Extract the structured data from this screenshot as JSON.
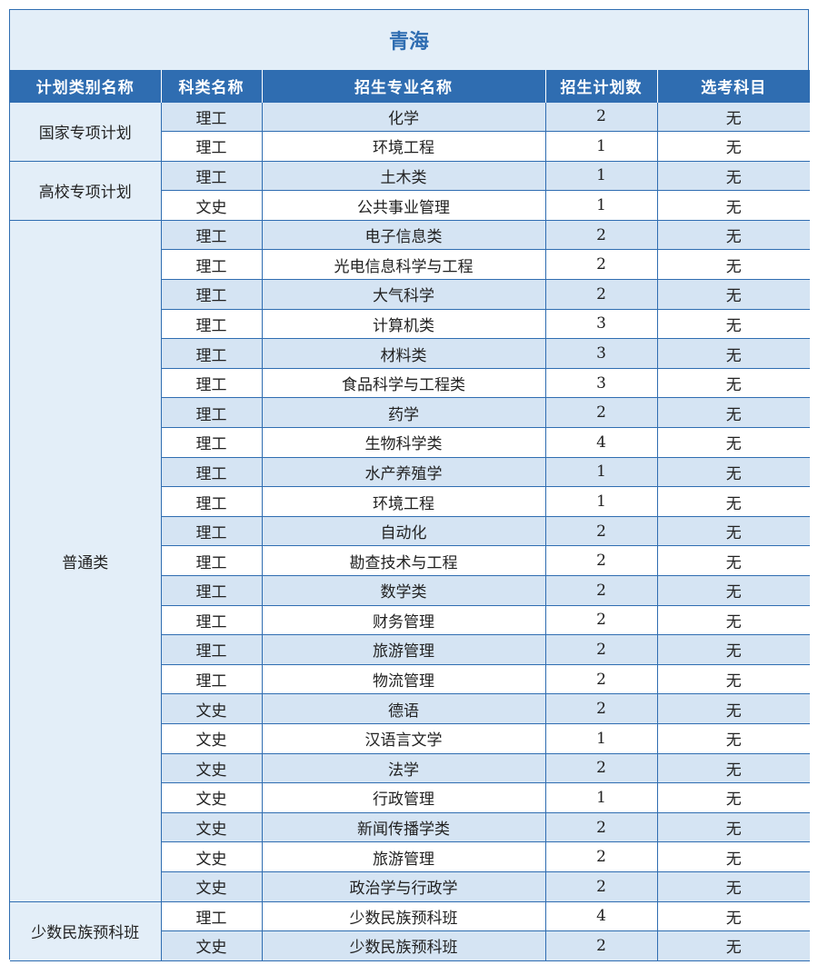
{
  "title": "青海",
  "headers": [
    "计划类别名称",
    "科类名称",
    "招生专业名称",
    "招生计划数",
    "选考科目"
  ],
  "groups": [
    {
      "name": "国家专项计划",
      "rows": [
        {
          "subject": "理工",
          "major": "化学",
          "count": "2",
          "elective": "无"
        },
        {
          "subject": "理工",
          "major": "环境工程",
          "count": "1",
          "elective": "无"
        }
      ]
    },
    {
      "name": "高校专项计划",
      "rows": [
        {
          "subject": "理工",
          "major": "土木类",
          "count": "1",
          "elective": "无"
        },
        {
          "subject": "文史",
          "major": "公共事业管理",
          "count": "1",
          "elective": "无"
        }
      ]
    },
    {
      "name": "普通类",
      "rows": [
        {
          "subject": "理工",
          "major": "电子信息类",
          "count": "2",
          "elective": "无"
        },
        {
          "subject": "理工",
          "major": "光电信息科学与工程",
          "count": "2",
          "elective": "无"
        },
        {
          "subject": "理工",
          "major": "大气科学",
          "count": "2",
          "elective": "无"
        },
        {
          "subject": "理工",
          "major": "计算机类",
          "count": "3",
          "elective": "无"
        },
        {
          "subject": "理工",
          "major": "材料类",
          "count": "3",
          "elective": "无"
        },
        {
          "subject": "理工",
          "major": "食品科学与工程类",
          "count": "3",
          "elective": "无"
        },
        {
          "subject": "理工",
          "major": "药学",
          "count": "2",
          "elective": "无"
        },
        {
          "subject": "理工",
          "major": "生物科学类",
          "count": "4",
          "elective": "无"
        },
        {
          "subject": "理工",
          "major": "水产养殖学",
          "count": "1",
          "elective": "无"
        },
        {
          "subject": "理工",
          "major": "环境工程",
          "count": "1",
          "elective": "无"
        },
        {
          "subject": "理工",
          "major": "自动化",
          "count": "2",
          "elective": "无"
        },
        {
          "subject": "理工",
          "major": "勘查技术与工程",
          "count": "2",
          "elective": "无"
        },
        {
          "subject": "理工",
          "major": "数学类",
          "count": "2",
          "elective": "无"
        },
        {
          "subject": "理工",
          "major": "财务管理",
          "count": "2",
          "elective": "无"
        },
        {
          "subject": "理工",
          "major": "旅游管理",
          "count": "2",
          "elective": "无"
        },
        {
          "subject": "理工",
          "major": "物流管理",
          "count": "2",
          "elective": "无"
        },
        {
          "subject": "文史",
          "major": "德语",
          "count": "2",
          "elective": "无"
        },
        {
          "subject": "文史",
          "major": "汉语言文学",
          "count": "1",
          "elective": "无"
        },
        {
          "subject": "文史",
          "major": "法学",
          "count": "2",
          "elective": "无"
        },
        {
          "subject": "文史",
          "major": "行政管理",
          "count": "1",
          "elective": "无"
        },
        {
          "subject": "文史",
          "major": "新闻传播学类",
          "count": "2",
          "elective": "无"
        },
        {
          "subject": "文史",
          "major": "旅游管理",
          "count": "2",
          "elective": "无"
        },
        {
          "subject": "文史",
          "major": "政治学与行政学",
          "count": "2",
          "elective": "无"
        }
      ]
    },
    {
      "name": "少数民族预科班",
      "rows": [
        {
          "subject": "理工",
          "major": "少数民族预科班",
          "count": "4",
          "elective": "无"
        },
        {
          "subject": "文史",
          "major": "少数民族预科班",
          "count": "2",
          "elective": "无"
        }
      ]
    }
  ]
}
